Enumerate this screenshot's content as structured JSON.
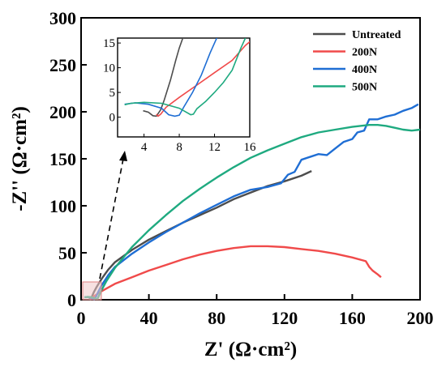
{
  "chart_data": {
    "type": "line",
    "xlabel": "Z' (Ω·cm²)",
    "ylabel": "-Z'' (Ω·cm²)",
    "xlim": [
      0,
      200
    ],
    "ylim": [
      0,
      300
    ],
    "xticks": [
      0,
      40,
      80,
      120,
      160,
      200
    ],
    "yticks": [
      0,
      50,
      100,
      150,
      200,
      250,
      300
    ],
    "legend_position": "top-right",
    "series": [
      {
        "name": "Untreated",
        "color": "#4d4d4d",
        "x": [
          4.5,
          5.5,
          6.3,
          7.5,
          9,
          12,
          16,
          20,
          30,
          40,
          50,
          60,
          70,
          80,
          90,
          100,
          110,
          120,
          130,
          136
        ],
        "y": [
          1,
          0.3,
          3,
          8,
          13,
          22,
          32,
          40,
          53,
          64,
          73,
          82,
          90,
          98,
          107,
          114,
          121,
          126,
          132,
          137
        ]
      },
      {
        "name": "200N",
        "color": "#f04a4a",
        "x": [
          5.3,
          5.8,
          7,
          9,
          12,
          16,
          20,
          30,
          40,
          50,
          60,
          70,
          80,
          90,
          100,
          110,
          120,
          130,
          140,
          150,
          160,
          168,
          170,
          172,
          175,
          177
        ],
        "y": [
          2,
          0.5,
          3,
          5.5,
          9,
          13,
          17,
          24,
          31,
          37,
          43,
          48,
          52,
          55,
          57,
          57,
          56,
          54,
          52,
          49,
          45,
          41,
          35,
          31,
          27,
          24
        ]
      },
      {
        "name": "400N",
        "color": "#1f6ed4",
        "x": [
          2,
          4,
          6,
          7,
          7.8,
          9,
          10,
          12,
          16,
          20,
          30,
          40,
          50,
          60,
          70,
          80,
          90,
          100,
          110,
          118,
          122,
          126,
          130,
          135,
          140,
          145,
          150,
          155,
          160,
          163,
          167,
          170,
          175,
          180,
          185,
          190,
          195,
          199
        ],
        "y": [
          2.8,
          2.9,
          2,
          0.8,
          0.3,
          4,
          8,
          15,
          26,
          35,
          49,
          61,
          72,
          82,
          92,
          101,
          110,
          117,
          120,
          124,
          133,
          136,
          149,
          152,
          155,
          154,
          161,
          168,
          171,
          178,
          180,
          192,
          192,
          195,
          197,
          201,
          204,
          208
        ]
      },
      {
        "name": "500N",
        "color": "#1faa80",
        "x": [
          2,
          4,
          6,
          8,
          9.5,
          10.5,
          12,
          15,
          20,
          30,
          40,
          50,
          60,
          70,
          80,
          90,
          100,
          110,
          120,
          130,
          140,
          150,
          160,
          170,
          175,
          180,
          185,
          190,
          195,
          200
        ],
        "y": [
          2.7,
          3,
          2.8,
          1.8,
          0.5,
          4,
          10,
          20,
          34,
          56,
          74,
          90,
          105,
          118,
          130,
          141,
          151,
          159,
          166,
          173,
          178,
          181,
          184,
          186,
          186,
          185,
          183,
          181,
          180,
          181
        ]
      }
    ],
    "inset": {
      "xlim": [
        1,
        16
      ],
      "ylim": [
        -4,
        16
      ],
      "xticks": [
        4,
        8,
        12,
        16
      ],
      "yticks": [
        0,
        5,
        10,
        15
      ],
      "series": [
        {
          "name": "Untreated",
          "x": [
            3.9,
            4.5,
            5.0,
            5.4,
            5.9,
            6.3,
            7.0,
            7.6,
            8.0,
            8.8
          ],
          "y": [
            1.3,
            1.0,
            0.3,
            0.2,
            1.5,
            3.5,
            7.5,
            11.5,
            14,
            18
          ]
        },
        {
          "name": "200N",
          "x": [
            5.4,
            5.6,
            5.9,
            6.5,
            8,
            10,
            12,
            14,
            15.5,
            16.5
          ],
          "y": [
            0.6,
            0.2,
            0.6,
            2,
            4,
            6.5,
            9,
            11.5,
            14.5,
            16
          ]
        },
        {
          "name": "400N",
          "x": [
            1.8,
            3,
            4.5,
            6,
            6.8,
            7.5,
            8,
            8.5,
            9.5,
            10.5,
            11.5,
            12.5,
            13
          ],
          "y": [
            2.6,
            2.9,
            2.6,
            1.8,
            0.5,
            0.2,
            0.4,
            2,
            5,
            8.5,
            13,
            17,
            18
          ]
        },
        {
          "name": "500N",
          "x": [
            1.8,
            2.5,
            4,
            6,
            8,
            9.3,
            9.6,
            10,
            11,
            12,
            13,
            14,
            15,
            15.5
          ],
          "y": [
            2.5,
            2.8,
            3,
            2.8,
            1.8,
            0.5,
            0.6,
            1.7,
            3.2,
            5,
            7,
            9.5,
            14,
            16
          ]
        }
      ]
    }
  }
}
